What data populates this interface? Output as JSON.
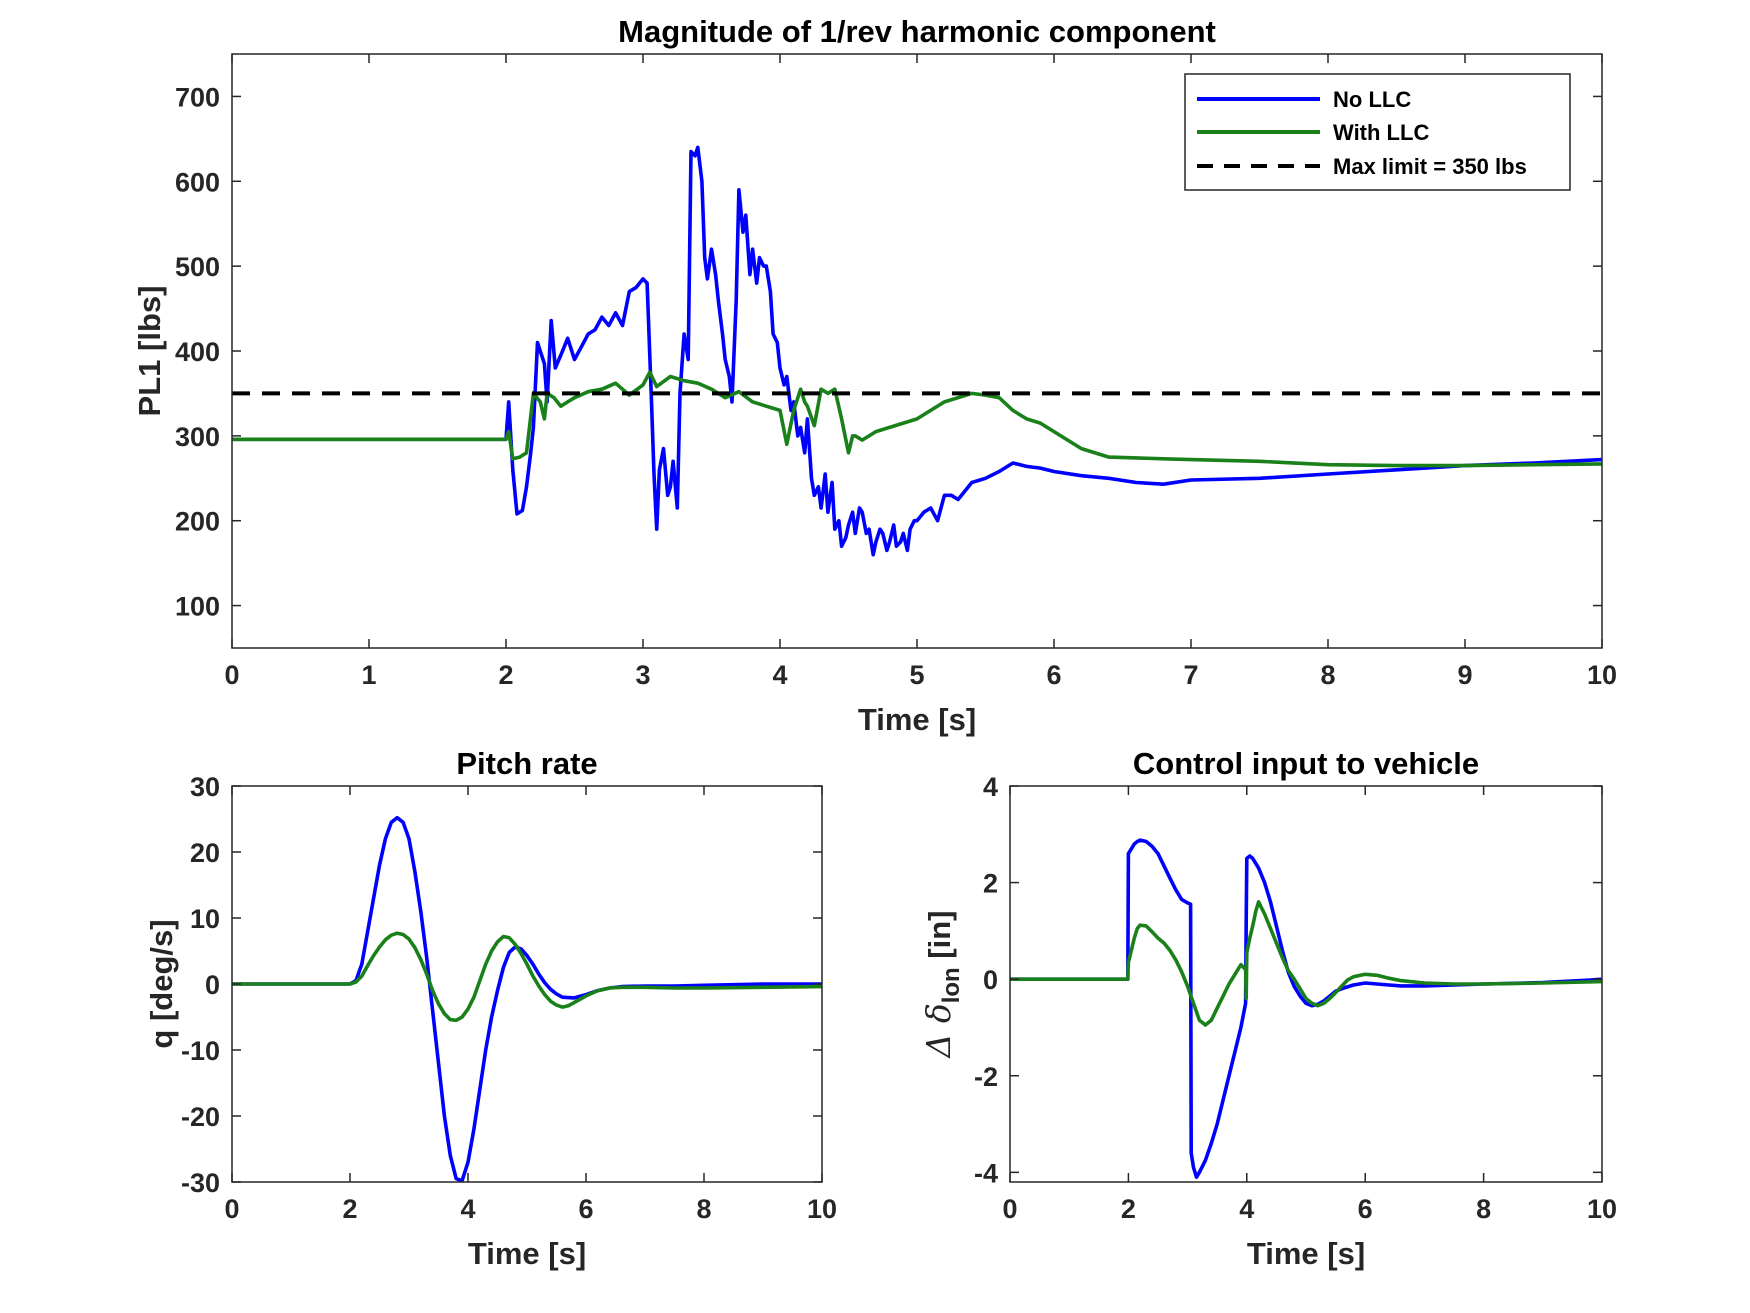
{
  "colors": {
    "no_llc": "#0000ff",
    "with_llc": "#1a801a",
    "limit": "#000000",
    "axis": "#262626"
  },
  "chart_data": [
    {
      "id": "top",
      "type": "line",
      "title": "Magnitude of 1/rev harmonic component",
      "xlabel": "Time [s]",
      "ylabel": "PL1 [lbs]",
      "xlim": [
        0,
        10
      ],
      "ylim": [
        50,
        750
      ],
      "xticks": [
        0,
        1,
        2,
        3,
        4,
        5,
        6,
        7,
        8,
        9,
        10
      ],
      "yticks": [
        100,
        200,
        300,
        400,
        500,
        600,
        700
      ],
      "legend": {
        "position": "top-right",
        "entries": [
          {
            "label": "No LLC",
            "series": 0
          },
          {
            "label": "With LLC",
            "series": 1
          },
          {
            "label": "Max limit = 350 lbs",
            "series": 2
          }
        ]
      },
      "series": [
        {
          "name": "No LLC",
          "color": "#0000ff",
          "style": "solid",
          "x": [
            0,
            1,
            2.0,
            2.02,
            2.05,
            2.08,
            2.12,
            2.15,
            2.18,
            2.2,
            2.23,
            2.26,
            2.28,
            2.3,
            2.33,
            2.36,
            2.4,
            2.45,
            2.5,
            2.55,
            2.6,
            2.65,
            2.7,
            2.75,
            2.8,
            2.85,
            2.9,
            2.95,
            3.0,
            3.03,
            3.06,
            3.08,
            3.1,
            3.12,
            3.15,
            3.18,
            3.2,
            3.22,
            3.25,
            3.27,
            3.3,
            3.33,
            3.35,
            3.38,
            3.4,
            3.43,
            3.45,
            3.47,
            3.5,
            3.53,
            3.55,
            3.58,
            3.6,
            3.63,
            3.65,
            3.68,
            3.7,
            3.73,
            3.75,
            3.78,
            3.8,
            3.83,
            3.85,
            3.88,
            3.9,
            3.93,
            3.95,
            3.98,
            4.0,
            4.03,
            4.05,
            4.08,
            4.1,
            4.13,
            4.15,
            4.18,
            4.2,
            4.23,
            4.25,
            4.28,
            4.3,
            4.33,
            4.35,
            4.38,
            4.4,
            4.43,
            4.45,
            4.48,
            4.5,
            4.53,
            4.55,
            4.58,
            4.6,
            4.63,
            4.65,
            4.68,
            4.7,
            4.73,
            4.75,
            4.78,
            4.8,
            4.83,
            4.85,
            4.88,
            4.9,
            4.93,
            4.95,
            4.98,
            5.0,
            5.05,
            5.1,
            5.15,
            5.2,
            5.25,
            5.3,
            5.4,
            5.5,
            5.6,
            5.7,
            5.8,
            5.9,
            6.0,
            6.2,
            6.4,
            6.6,
            6.8,
            7.0,
            7.5,
            8.0,
            8.5,
            9.0,
            9.5,
            10.0
          ],
          "y": [
            296,
            296,
            296,
            340,
            260,
            208,
            212,
            240,
            280,
            310,
            410,
            395,
            385,
            340,
            436,
            380,
            395,
            415,
            390,
            405,
            420,
            425,
            440,
            430,
            445,
            430,
            470,
            475,
            485,
            480,
            350,
            255,
            190,
            260,
            285,
            230,
            240,
            270,
            215,
            350,
            420,
            390,
            635,
            630,
            640,
            600,
            510,
            485,
            520,
            490,
            460,
            420,
            390,
            370,
            340,
            460,
            590,
            540,
            560,
            490,
            520,
            480,
            510,
            500,
            500,
            470,
            420,
            410,
            380,
            360,
            370,
            330,
            340,
            300,
            310,
            280,
            320,
            250,
            230,
            240,
            215,
            255,
            210,
            245,
            190,
            200,
            170,
            180,
            195,
            210,
            185,
            215,
            210,
            185,
            190,
            160,
            175,
            190,
            185,
            165,
            175,
            195,
            170,
            175,
            185,
            165,
            190,
            200,
            200,
            210,
            215,
            200,
            230,
            230,
            225,
            245,
            250,
            258,
            268,
            264,
            262,
            258,
            253,
            250,
            245,
            243,
            248,
            250,
            255,
            260,
            265,
            268,
            272
          ]
        },
        {
          "name": "With LLC",
          "color": "#1a801a",
          "style": "solid",
          "x": [
            0,
            1,
            2.0,
            2.02,
            2.05,
            2.1,
            2.15,
            2.2,
            2.25,
            2.28,
            2.3,
            2.35,
            2.4,
            2.45,
            2.5,
            2.6,
            2.7,
            2.8,
            2.9,
            3.0,
            3.05,
            3.1,
            3.2,
            3.3,
            3.4,
            3.5,
            3.6,
            3.7,
            3.8,
            3.9,
            4.0,
            4.05,
            4.1,
            4.15,
            4.18,
            4.2,
            4.25,
            4.3,
            4.35,
            4.4,
            4.45,
            4.5,
            4.53,
            4.55,
            4.6,
            4.7,
            4.8,
            4.9,
            5.0,
            5.1,
            5.2,
            5.3,
            5.4,
            5.5,
            5.6,
            5.7,
            5.8,
            5.9,
            6.0,
            6.2,
            6.4,
            6.6,
            6.8,
            7.0,
            7.5,
            8.0,
            8.5,
            9.0,
            9.5,
            10.0
          ],
          "y": [
            296,
            296,
            296,
            305,
            273,
            275,
            280,
            350,
            340,
            320,
            350,
            345,
            335,
            340,
            345,
            352,
            355,
            362,
            348,
            360,
            375,
            358,
            370,
            365,
            362,
            355,
            345,
            352,
            340,
            335,
            330,
            290,
            330,
            355,
            340,
            335,
            312,
            355,
            350,
            355,
            320,
            280,
            300,
            300,
            295,
            305,
            310,
            315,
            320,
            330,
            340,
            345,
            350,
            348,
            345,
            330,
            320,
            315,
            305,
            285,
            275,
            274,
            273,
            272,
            270,
            266,
            265,
            265,
            266,
            267
          ]
        },
        {
          "name": "Max limit = 350 lbs",
          "color": "#000000",
          "style": "dashed",
          "x": [
            0,
            10
          ],
          "y": [
            350,
            350
          ]
        }
      ]
    },
    {
      "id": "pitch",
      "type": "line",
      "title": "Pitch rate",
      "xlabel": "Time [s]",
      "ylabel": "q [deg/s]",
      "xlim": [
        0,
        10
      ],
      "ylim": [
        -30,
        30
      ],
      "xticks": [
        0,
        2,
        4,
        6,
        8,
        10
      ],
      "yticks": [
        -30,
        -20,
        -10,
        0,
        10,
        20,
        30
      ],
      "series": [
        {
          "name": "No LLC",
          "color": "#0000ff",
          "style": "solid",
          "x": [
            0,
            1,
            2.0,
            2.1,
            2.2,
            2.3,
            2.4,
            2.5,
            2.6,
            2.7,
            2.8,
            2.9,
            3.0,
            3.1,
            3.2,
            3.3,
            3.4,
            3.5,
            3.6,
            3.7,
            3.8,
            3.9,
            4.0,
            4.1,
            4.2,
            4.3,
            4.4,
            4.5,
            4.6,
            4.7,
            4.8,
            4.9,
            5.0,
            5.1,
            5.2,
            5.3,
            5.4,
            5.5,
            5.6,
            5.8,
            6.0,
            6.2,
            6.4,
            6.6,
            7.0,
            7.5,
            8.0,
            9.0,
            10.0
          ],
          "y": [
            0,
            0,
            0,
            0.5,
            3,
            8,
            13,
            18,
            22,
            24.5,
            25.2,
            24.5,
            22,
            17,
            11,
            4,
            -4,
            -12,
            -20,
            -26,
            -29.5,
            -29.8,
            -27,
            -22,
            -16,
            -10,
            -5,
            -1,
            2.5,
            4.8,
            5.6,
            5.3,
            4.3,
            3,
            1.5,
            0.2,
            -0.8,
            -1.5,
            -2.0,
            -2.1,
            -1.6,
            -1.0,
            -0.6,
            -0.4,
            -0.3,
            -0.3,
            -0.2,
            0,
            0
          ]
        },
        {
          "name": "With LLC",
          "color": "#1a801a",
          "style": "solid",
          "x": [
            0,
            1,
            2.0,
            2.1,
            2.2,
            2.3,
            2.4,
            2.5,
            2.6,
            2.7,
            2.8,
            2.9,
            3.0,
            3.1,
            3.2,
            3.3,
            3.4,
            3.5,
            3.6,
            3.7,
            3.8,
            3.9,
            4.0,
            4.1,
            4.2,
            4.3,
            4.4,
            4.5,
            4.6,
            4.7,
            4.8,
            4.9,
            5.0,
            5.1,
            5.2,
            5.3,
            5.4,
            5.5,
            5.6,
            5.7,
            5.8,
            6.0,
            6.2,
            6.4,
            6.6,
            7.0,
            7.5,
            8.0,
            9.0,
            10.0
          ],
          "y": [
            0,
            0,
            0,
            0.3,
            1.2,
            2.8,
            4.3,
            5.6,
            6.7,
            7.4,
            7.7,
            7.5,
            6.8,
            5.5,
            3.7,
            1.5,
            -1,
            -3,
            -4.5,
            -5.4,
            -5.5,
            -5,
            -3.8,
            -2,
            0.5,
            3,
            5,
            6.4,
            7.2,
            7.0,
            6.0,
            4.6,
            3.0,
            1.2,
            -0.3,
            -1.6,
            -2.6,
            -3.2,
            -3.5,
            -3.3,
            -2.8,
            -1.8,
            -1.0,
            -0.6,
            -0.5,
            -0.5,
            -0.6,
            -0.6,
            -0.5,
            -0.4
          ]
        }
      ]
    },
    {
      "id": "control",
      "type": "line",
      "title": "Control input to vehicle",
      "xlabel": "Time [s]",
      "ylabel": "Δδlon [in]",
      "xlim": [
        0,
        10
      ],
      "ylim": [
        -4.2,
        4
      ],
      "xticks": [
        0,
        2,
        4,
        6,
        8,
        10
      ],
      "yticks": [
        -4,
        -2,
        0,
        2,
        4
      ],
      "series": [
        {
          "name": "No LLC",
          "color": "#0000ff",
          "style": "solid",
          "x": [
            0,
            1,
            1.99,
            2.0,
            2.05,
            2.1,
            2.15,
            2.2,
            2.3,
            2.4,
            2.5,
            2.6,
            2.7,
            2.8,
            2.9,
            3.0,
            3.05,
            3.06,
            3.1,
            3.15,
            3.2,
            3.3,
            3.4,
            3.5,
            3.6,
            3.7,
            3.8,
            3.9,
            3.98,
            3.99,
            4.0,
            4.05,
            4.1,
            4.2,
            4.3,
            4.4,
            4.5,
            4.6,
            4.7,
            4.8,
            4.9,
            5.0,
            5.1,
            5.2,
            5.3,
            5.4,
            5.5,
            5.6,
            5.7,
            5.8,
            6.0,
            6.2,
            6.4,
            6.6,
            7.0,
            7.5,
            8.0,
            9.0,
            9.8,
            10.0
          ],
          "y": [
            0,
            0,
            0,
            2.6,
            2.7,
            2.8,
            2.85,
            2.88,
            2.85,
            2.75,
            2.6,
            2.35,
            2.1,
            1.85,
            1.65,
            1.58,
            1.55,
            -3.6,
            -3.9,
            -4.1,
            -4.0,
            -3.75,
            -3.4,
            -3.0,
            -2.5,
            -2.0,
            -1.5,
            -1.0,
            -0.5,
            1.2,
            2.5,
            2.55,
            2.5,
            2.3,
            2.0,
            1.6,
            1.1,
            0.6,
            0.15,
            -0.15,
            -0.35,
            -0.5,
            -0.55,
            -0.52,
            -0.45,
            -0.35,
            -0.25,
            -0.2,
            -0.16,
            -0.12,
            -0.08,
            -0.1,
            -0.12,
            -0.14,
            -0.14,
            -0.12,
            -0.1,
            -0.07,
            -0.02,
            0.0
          ]
        },
        {
          "name": "With LLC",
          "color": "#1a801a",
          "style": "solid",
          "x": [
            0,
            1,
            1.99,
            2.0,
            2.05,
            2.1,
            2.15,
            2.2,
            2.3,
            2.4,
            2.5,
            2.6,
            2.7,
            2.8,
            2.9,
            3.0,
            3.1,
            3.2,
            3.3,
            3.4,
            3.5,
            3.6,
            3.7,
            3.8,
            3.9,
            3.98,
            3.99,
            4.0,
            4.05,
            4.1,
            4.15,
            4.2,
            4.3,
            4.4,
            4.5,
            4.6,
            4.7,
            4.8,
            4.9,
            5.0,
            5.1,
            5.2,
            5.3,
            5.4,
            5.5,
            5.6,
            5.7,
            5.8,
            6.0,
            6.2,
            6.4,
            6.6,
            7.0,
            7.5,
            8.0,
            9.0,
            10.0
          ],
          "y": [
            0,
            0,
            0,
            0.35,
            0.6,
            0.85,
            1.05,
            1.12,
            1.1,
            0.98,
            0.85,
            0.75,
            0.6,
            0.4,
            0.15,
            -0.15,
            -0.5,
            -0.85,
            -0.95,
            -0.85,
            -0.6,
            -0.35,
            -0.1,
            0.1,
            0.3,
            0.2,
            -0.4,
            0.55,
            0.85,
            1.1,
            1.4,
            1.6,
            1.35,
            1.05,
            0.75,
            0.45,
            0.18,
            0.0,
            -0.2,
            -0.4,
            -0.5,
            -0.55,
            -0.5,
            -0.4,
            -0.28,
            -0.15,
            -0.02,
            0.05,
            0.1,
            0.08,
            0.02,
            -0.03,
            -0.08,
            -0.1,
            -0.1,
            -0.08,
            -0.05
          ]
        }
      ]
    }
  ]
}
